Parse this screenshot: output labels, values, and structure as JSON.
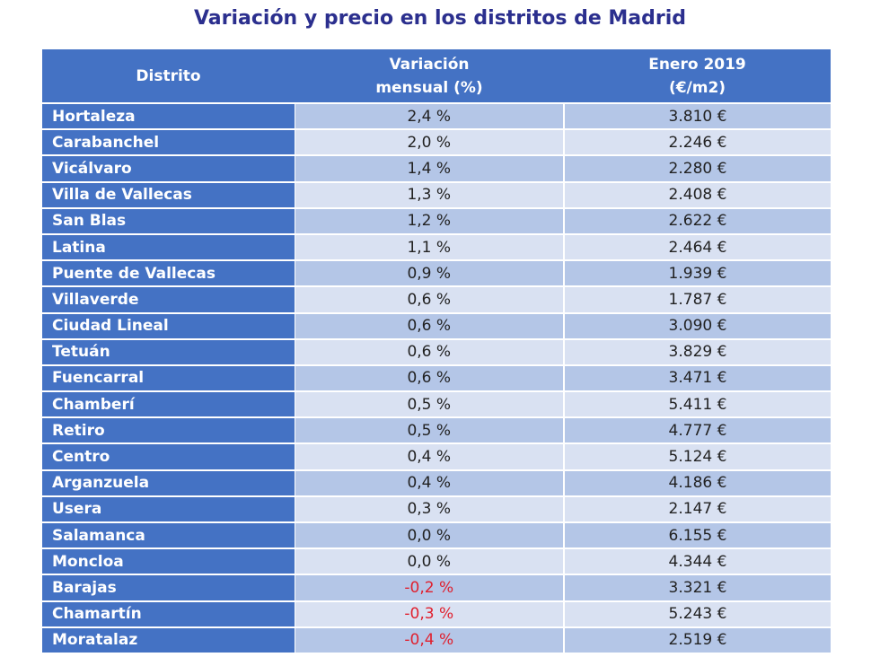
{
  "title": "Variación y precio en los distritos de Madrid",
  "colors": {
    "header": "#4472c4",
    "row_dark": "#b4c6e7",
    "row_light": "#d9e1f2",
    "negative": "#e0202e",
    "title": "#2b2f8e"
  },
  "headers": {
    "distrito": "Distrito",
    "variacion_l1": "Variación",
    "variacion_l2": "mensual (%)",
    "precio_l1": "Enero 2019",
    "precio_l2": "(€/m2)"
  },
  "rows": [
    {
      "distrito": "Hortaleza",
      "variacion": "2,4 %",
      "precio": "3.810 €"
    },
    {
      "distrito": "Carabanchel",
      "variacion": "2,0 %",
      "precio": "2.246 €"
    },
    {
      "distrito": "Vicálvaro",
      "variacion": "1,4 %",
      "precio": "2.280 €"
    },
    {
      "distrito": "Villa de Vallecas",
      "variacion": "1,3 %",
      "precio": "2.408 €"
    },
    {
      "distrito": "San Blas",
      "variacion": "1,2 %",
      "precio": "2.622 €"
    },
    {
      "distrito": "Latina",
      "variacion": "1,1 %",
      "precio": "2.464 €"
    },
    {
      "distrito": "Puente de Vallecas",
      "variacion": "0,9 %",
      "precio": "1.939 €"
    },
    {
      "distrito": "Villaverde",
      "variacion": "0,6 %",
      "precio": "1.787 €"
    },
    {
      "distrito": "Ciudad Lineal",
      "variacion": "0,6 %",
      "precio": "3.090 €"
    },
    {
      "distrito": "Tetuán",
      "variacion": "0,6 %",
      "precio": "3.829 €"
    },
    {
      "distrito": "Fuencarral",
      "variacion": "0,6 %",
      "precio": "3.471 €"
    },
    {
      "distrito": "Chamberí",
      "variacion": "0,5 %",
      "precio": "5.411 €"
    },
    {
      "distrito": "Retiro",
      "variacion": "0,5 %",
      "precio": "4.777 €"
    },
    {
      "distrito": "Centro",
      "variacion": "0,4 %",
      "precio": "5.124 €"
    },
    {
      "distrito": "Arganzuela",
      "variacion": "0,4 %",
      "precio": "4.186 €"
    },
    {
      "distrito": "Usera",
      "variacion": "0,3 %",
      "precio": "2.147 €"
    },
    {
      "distrito": "Salamanca",
      "variacion": "0,0 %",
      "precio": "6.155 €"
    },
    {
      "distrito": "Moncloa",
      "variacion": "0,0 %",
      "precio": "4.344 €"
    },
    {
      "distrito": "Barajas",
      "variacion": "-0,2 %",
      "precio": "3.321 €"
    },
    {
      "distrito": "Chamartín",
      "variacion": "-0,3 %",
      "precio": "5.243 €"
    },
    {
      "distrito": "Moratalaz",
      "variacion": "-0,4 %",
      "precio": "2.519 €"
    }
  ]
}
